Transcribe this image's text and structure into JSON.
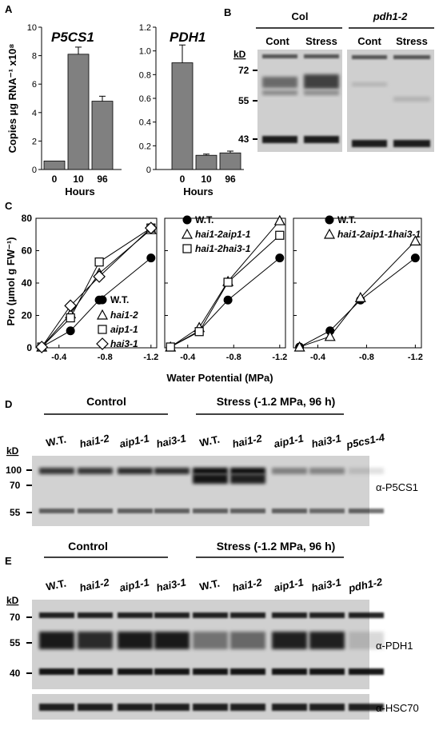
{
  "panel_labels": {
    "A": "A",
    "B": "B",
    "C": "C",
    "D": "D",
    "E": "E"
  },
  "chart_data": [
    {
      "type": "bar",
      "panel": "A",
      "title": "P5CS1",
      "ylabel": "Copies µg RNA⁻¹ x10⁸",
      "xlabel": "Hours",
      "categories": [
        "0",
        "10",
        "96"
      ],
      "values": [
        0.6,
        8.1,
        4.8
      ],
      "errors": [
        0,
        0.5,
        0.35
      ],
      "ylim": [
        0,
        10
      ],
      "yticks": [
        "0",
        "2",
        "4",
        "6",
        "8",
        "10"
      ]
    },
    {
      "type": "bar",
      "panel": "A",
      "title": "PDH1",
      "xlabel": "Hours",
      "categories": [
        "0",
        "10",
        "96"
      ],
      "values": [
        0.9,
        0.12,
        0.14
      ],
      "errors": [
        0.15,
        0.01,
        0.015
      ],
      "ylim": [
        0,
        1.2
      ],
      "yticks": [
        "0",
        "0.2",
        "0.4",
        "0.6",
        "0.8",
        "1.0",
        "1.2"
      ]
    },
    {
      "type": "line",
      "panel": "C",
      "ylabel": "Pro (µmol g FW⁻¹)",
      "xticks": [
        "-0.4",
        "-0.8",
        "-1.2"
      ],
      "yticks": [
        "0",
        "20",
        "40",
        "60",
        "80"
      ],
      "ylim": [
        0,
        80
      ],
      "xlim": [
        -0.2,
        -1.25
      ],
      "series": [
        {
          "name": "W.T.",
          "marker": "circle",
          "x": [
            -0.25,
            -0.5,
            -0.75,
            -1.2
          ],
          "y": [
            0.5,
            10.5,
            29.5,
            55.5
          ]
        },
        {
          "name": "hai1-2",
          "marker": "triangle",
          "x": [
            -0.25,
            -0.5,
            -0.75,
            -1.2
          ],
          "y": [
            0.5,
            21,
            46,
            73
          ]
        },
        {
          "name": "aip1-1",
          "marker": "square",
          "x": [
            -0.25,
            -0.5,
            -0.75,
            -1.2
          ],
          "y": [
            0.5,
            18.5,
            53,
            74
          ]
        },
        {
          "name": "hai3-1",
          "marker": "diamond",
          "x": [
            -0.25,
            -0.5,
            -0.75,
            -1.2
          ],
          "y": [
            0.5,
            26,
            44,
            74
          ]
        }
      ]
    },
    {
      "type": "line",
      "panel": "C",
      "xticks": [
        "-0.4",
        "-0.8",
        "-1.2"
      ],
      "yticks": [
        "0",
        "20",
        "40",
        "60",
        "80"
      ],
      "ylim": [
        0,
        80
      ],
      "xlim": [
        -0.2,
        -1.25
      ],
      "series": [
        {
          "name": "W.T.",
          "marker": "circle",
          "x": [
            -0.25,
            -0.5,
            -0.75,
            -1.2
          ],
          "y": [
            0.5,
            10.5,
            29.5,
            55.5
          ]
        },
        {
          "name": "hai1-2aip1-1",
          "marker": "triangle",
          "x": [
            -0.25,
            -0.5,
            -0.75,
            -1.2
          ],
          "y": [
            0.5,
            12.5,
            41,
            78.5
          ]
        },
        {
          "name": "hai1-2hai3-1",
          "marker": "square",
          "x": [
            -0.25,
            -0.5,
            -0.75,
            -1.2
          ],
          "y": [
            0.5,
            10,
            40.5,
            69.5
          ]
        }
      ]
    },
    {
      "type": "line",
      "panel": "C",
      "xticks": [
        "-0.4",
        "-0.8",
        "-1.2"
      ],
      "yticks": [
        "0",
        "20",
        "40",
        "60",
        "80"
      ],
      "ylim": [
        0,
        80
      ],
      "xlim": [
        -0.2,
        -1.25
      ],
      "series": [
        {
          "name": "W.T.",
          "marker": "circle",
          "x": [
            -0.25,
            -0.5,
            -0.75,
            -1.2
          ],
          "y": [
            0.5,
            10.5,
            29.5,
            55.5
          ]
        },
        {
          "name": "hai1-2aip1-1hai3-1",
          "marker": "triangle",
          "x": [
            -0.25,
            -0.5,
            -0.75,
            -1.2
          ],
          "y": [
            0.5,
            7,
            31,
            66
          ]
        }
      ]
    }
  ],
  "panel_c_xlabel": "Water Potential (MPa)",
  "blot_b": {
    "col_label": "Col",
    "mut_label": "pdh1-2",
    "lanes": [
      "Cont",
      "Stress",
      "Cont",
      "Stress"
    ],
    "kd": "kD",
    "markers": [
      "72",
      "55",
      "43"
    ]
  },
  "blot_d": {
    "control": "Control",
    "stress": "Stress (-1.2 MPa, 96 h)",
    "lanes": [
      "W.T.",
      "hai1-2",
      "aip1-1",
      "hai3-1",
      "W.T.",
      "hai1-2",
      "aip1-1",
      "hai3-1",
      "p5cs1-4"
    ],
    "kd": "kD",
    "markers": [
      "100",
      "70",
      "55"
    ],
    "antibody": "α-P5CS1"
  },
  "blot_e": {
    "control": "Control",
    "stress": "Stress (-1.2 MPa, 96 h)",
    "lanes": [
      "W.T.",
      "hai1-2",
      "aip1-1",
      "hai3-1",
      "W.T.",
      "hai1-2",
      "aip1-1",
      "hai3-1",
      "pdh1-2"
    ],
    "kd": "kD",
    "markers": [
      "70",
      "55",
      "40"
    ],
    "antibody": "α-PDH1",
    "antibody2": "α-HSC70"
  }
}
